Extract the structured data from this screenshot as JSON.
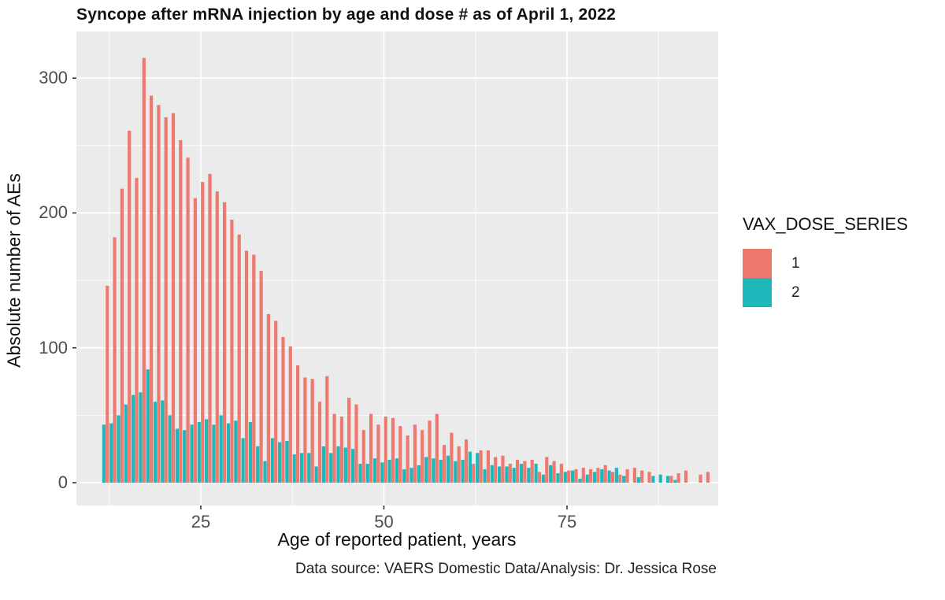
{
  "page": {
    "title": "Syncope after mRNA injection by age and dose # as of April 1, 2022",
    "caption": "Data source: VAERS Domestic Data/Analysis: Dr. Jessica Rose"
  },
  "legend": {
    "title": "VAX_DOSE_SERIES",
    "entries": [
      {
        "label": "1",
        "color": "#EE796F"
      },
      {
        "label": "2",
        "color": "#1EB8BB"
      }
    ]
  },
  "colors": {
    "dose1": "#EE796F",
    "dose2": "#1EB8BB",
    "panel_background": "#EBEBEB",
    "gridline": "#FFFFFF",
    "axis_text": "#4d4d4d",
    "tick_mark": "#333333"
  },
  "chart_data": {
    "type": "bar",
    "title": "Syncope after mRNA injection by age and dose # as of April 1, 2022",
    "xlabel": "Age of reported patient, years",
    "ylabel": "Absolute number of AEs",
    "caption": "Data source: VAERS Domestic Data/Analysis: Dr. Jessica Rose",
    "legend_title": "VAX_DOSE_SERIES",
    "legend_position": "right",
    "grid": "on",
    "bar_mode": "dodge",
    "xlim": [
      8,
      95.6
    ],
    "ylim": [
      0,
      334
    ],
    "x_major_ticks": [
      25,
      50,
      75
    ],
    "x_minor_gridlines": [
      12.5,
      37.5,
      62.5,
      87.5
    ],
    "y_major_ticks": [
      0,
      100,
      200,
      300
    ],
    "y_minor_gridlines": [
      50,
      150,
      250
    ],
    "x": [
      12,
      13,
      14,
      15,
      16,
      17,
      18,
      19,
      20,
      21,
      22,
      23,
      24,
      25,
      26,
      27,
      28,
      29,
      30,
      31,
      32,
      33,
      34,
      35,
      36,
      37,
      38,
      39,
      40,
      41,
      42,
      43,
      44,
      45,
      46,
      47,
      48,
      49,
      50,
      51,
      52,
      53,
      54,
      55,
      56,
      57,
      58,
      59,
      60,
      61,
      62,
      63,
      64,
      65,
      66,
      67,
      68,
      69,
      70,
      71,
      72,
      73,
      74,
      75,
      76,
      77,
      78,
      79,
      80,
      81,
      82,
      83,
      84,
      85,
      86,
      87,
      88,
      89,
      90,
      91,
      92,
      93,
      94
    ],
    "series": [
      {
        "name": "1",
        "color": "#EE796F",
        "values": [
          146,
          182,
          218,
          261,
          226,
          315,
          287,
          280,
          271,
          274,
          254,
          241,
          211,
          223,
          229,
          216,
          208,
          195,
          184,
          172,
          169,
          157,
          125,
          120,
          108,
          101,
          87,
          78,
          77,
          60,
          79,
          51,
          49,
          63,
          58,
          39,
          51,
          43,
          49,
          48,
          42,
          35,
          43,
          39,
          46,
          51,
          28,
          37,
          27,
          32,
          14,
          24,
          24,
          19,
          20,
          14,
          17,
          16,
          17,
          8,
          19,
          16,
          14,
          9,
          10,
          11,
          10,
          11,
          13,
          8,
          6,
          10,
          11,
          9,
          8,
          0,
          0,
          5,
          7,
          9,
          0,
          6,
          8
        ]
      },
      {
        "name": "2",
        "color": "#1EB8BB",
        "values": [
          43,
          44,
          50,
          58,
          65,
          67,
          84,
          60,
          61,
          50,
          40,
          39,
          43,
          45,
          47,
          43,
          50,
          44,
          46,
          33,
          45,
          27,
          16,
          33,
          30,
          31,
          21,
          22,
          22,
          12,
          27,
          22,
          27,
          26,
          25,
          14,
          14,
          18,
          15,
          17,
          18,
          10,
          11,
          13,
          19,
          18,
          17,
          20,
          16,
          17,
          23,
          22,
          10,
          13,
          12,
          12,
          11,
          14,
          11,
          14,
          6,
          13,
          7,
          8,
          9,
          3,
          6,
          8,
          10,
          9,
          11,
          5,
          0,
          4,
          0,
          5,
          6,
          5,
          2,
          0,
          0,
          0,
          0
        ]
      }
    ]
  }
}
